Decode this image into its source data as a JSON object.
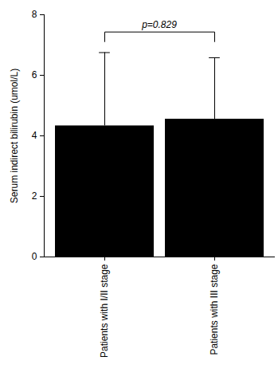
{
  "chart_data": {
    "type": "bar",
    "categories": [
      "Patients with I/II stage",
      "Patients with III stage"
    ],
    "values": [
      4.33,
      4.55
    ],
    "errors": [
      2.42,
      2.03
    ],
    "color": "#000000",
    "ylabel": "Serum indirect bilirubin (umol/L)",
    "ylim": [
      0,
      8
    ],
    "yticks": [
      0,
      2,
      4,
      6,
      8
    ],
    "annotations": [
      {
        "text": "p=0.829",
        "between": [
          "Patients with I/II stage",
          "Patients with III stage"
        ]
      }
    ]
  }
}
